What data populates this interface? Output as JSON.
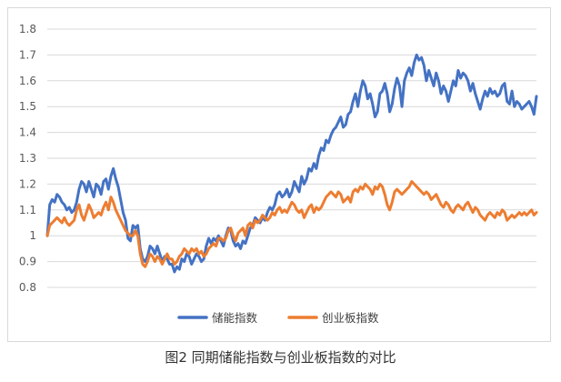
{
  "caption": "图2 同期储能指数与创业板指数的对比",
  "colors": {
    "storage": "#4472C4",
    "chinext": "#ED7D31",
    "grid": "#d9d9d9",
    "axis_text": "#595959"
  },
  "chart_data": {
    "type": "line",
    "title": "",
    "xlabel": "",
    "ylabel": "",
    "ylim": [
      0.8,
      1.8
    ],
    "yticks": [
      "0.8",
      "0.9",
      "1",
      "1.1",
      "1.2",
      "1.3",
      "1.4",
      "1.5",
      "1.6",
      "1.7",
      "1.8"
    ],
    "grid": true,
    "legend_position": "bottom",
    "x": [
      0,
      1,
      2,
      3,
      4,
      5,
      6,
      7,
      8,
      9,
      10,
      11,
      12,
      13,
      14,
      15,
      16,
      17,
      18,
      19,
      20,
      21,
      22,
      23,
      24,
      25,
      26,
      27,
      28,
      29,
      30,
      31,
      32,
      33,
      34,
      35,
      36,
      37,
      38,
      39,
      40,
      41,
      42,
      43,
      44,
      45,
      46,
      47,
      48,
      49,
      50,
      51,
      52,
      53,
      54,
      55,
      56,
      57,
      58,
      59,
      60,
      61,
      62,
      63,
      64,
      65,
      66,
      67,
      68,
      69,
      70,
      71,
      72,
      73,
      74,
      75,
      76,
      77,
      78,
      79,
      80,
      81,
      82,
      83,
      84,
      85,
      86,
      87,
      88,
      89,
      90,
      91,
      92,
      93,
      94,
      95,
      96,
      97,
      98,
      99,
      100,
      101,
      102,
      103,
      104,
      105,
      106,
      107,
      108,
      109,
      110,
      111,
      112,
      113,
      114,
      115,
      116,
      117,
      118,
      119,
      120,
      121,
      122,
      123,
      124,
      125,
      126,
      127,
      128,
      129,
      130,
      131,
      132,
      133,
      134,
      135,
      136,
      137,
      138,
      139,
      140,
      141,
      142,
      143,
      144,
      145,
      146,
      147,
      148,
      149,
      150,
      151,
      152,
      153,
      154,
      155,
      156,
      157,
      158,
      159,
      160,
      161,
      162,
      163,
      164,
      165,
      166,
      167,
      168,
      169,
      170,
      171,
      172,
      173,
      174,
      175,
      176,
      177,
      178,
      179,
      180,
      181,
      182,
      183,
      184,
      185,
      186,
      187,
      188,
      189,
      190,
      191,
      192,
      193,
      194,
      195,
      196,
      197,
      198,
      199,
      200
    ],
    "series": [
      {
        "name": "储能指数",
        "color": "#4472C4",
        "values": [
          1.0,
          1.12,
          1.14,
          1.13,
          1.16,
          1.15,
          1.13,
          1.12,
          1.1,
          1.11,
          1.09,
          1.1,
          1.13,
          1.18,
          1.21,
          1.2,
          1.17,
          1.21,
          1.18,
          1.15,
          1.2,
          1.19,
          1.16,
          1.21,
          1.22,
          1.18,
          1.23,
          1.26,
          1.22,
          1.19,
          1.14,
          1.09,
          1.06,
          0.99,
          0.98,
          1.04,
          1.03,
          1.04,
          0.95,
          0.91,
          0.9,
          0.92,
          0.96,
          0.95,
          0.93,
          0.96,
          0.93,
          0.9,
          0.92,
          0.91,
          0.89,
          0.89,
          0.86,
          0.88,
          0.87,
          0.91,
          0.9,
          0.93,
          0.92,
          0.89,
          0.91,
          0.93,
          0.92,
          0.9,
          0.91,
          0.96,
          0.99,
          0.97,
          0.99,
          0.98,
          1.0,
          0.98,
          0.96,
          1.0,
          1.03,
          1.02,
          0.98,
          0.96,
          0.97,
          0.95,
          0.98,
          0.97,
          1.0,
          1.03,
          1.04,
          1.07,
          1.06,
          1.05,
          1.07,
          1.06,
          1.09,
          1.11,
          1.1,
          1.12,
          1.16,
          1.17,
          1.15,
          1.16,
          1.18,
          1.15,
          1.17,
          1.21,
          1.19,
          1.17,
          1.23,
          1.2,
          1.22,
          1.26,
          1.25,
          1.28,
          1.26,
          1.31,
          1.34,
          1.33,
          1.37,
          1.36,
          1.39,
          1.41,
          1.42,
          1.44,
          1.46,
          1.42,
          1.43,
          1.47,
          1.48,
          1.52,
          1.55,
          1.5,
          1.56,
          1.6,
          1.58,
          1.53,
          1.55,
          1.51,
          1.46,
          1.48,
          1.55,
          1.56,
          1.59,
          1.55,
          1.48,
          1.51,
          1.57,
          1.61,
          1.58,
          1.5,
          1.6,
          1.63,
          1.65,
          1.62,
          1.67,
          1.7,
          1.68,
          1.69,
          1.66,
          1.6,
          1.64,
          1.61,
          1.58,
          1.63,
          1.6,
          1.55,
          1.58,
          1.56,
          1.52,
          1.56,
          1.6,
          1.58,
          1.64,
          1.61,
          1.63,
          1.62,
          1.6,
          1.56,
          1.59,
          1.55,
          1.52,
          1.49,
          1.53,
          1.56,
          1.54,
          1.57,
          1.55,
          1.56,
          1.54,
          1.55,
          1.58,
          1.59,
          1.52,
          1.51,
          1.56,
          1.5,
          1.52,
          1.51,
          1.49,
          1.5,
          1.51,
          1.52,
          1.5,
          1.47,
          1.54
        ]
      },
      {
        "name": "创业板指数",
        "color": "#ED7D31",
        "values": [
          1.0,
          1.04,
          1.05,
          1.06,
          1.07,
          1.06,
          1.05,
          1.07,
          1.05,
          1.04,
          1.05,
          1.06,
          1.1,
          1.12,
          1.08,
          1.06,
          1.09,
          1.12,
          1.1,
          1.07,
          1.08,
          1.09,
          1.08,
          1.11,
          1.13,
          1.1,
          1.15,
          1.13,
          1.1,
          1.08,
          1.06,
          1.04,
          1.02,
          1.01,
          1.0,
          1.0,
          1.02,
          1.0,
          0.93,
          0.89,
          0.88,
          0.9,
          0.93,
          0.92,
          0.9,
          0.92,
          0.91,
          0.89,
          0.91,
          0.93,
          0.91,
          0.91,
          0.89,
          0.9,
          0.92,
          0.93,
          0.95,
          0.94,
          0.93,
          0.95,
          0.94,
          0.95,
          0.93,
          0.94,
          0.92,
          0.93,
          0.95,
          0.96,
          0.97,
          0.96,
          0.99,
          0.99,
          0.98,
          0.99,
          1.02,
          1.03,
          1.0,
          0.98,
          1.01,
          1.02,
          1.03,
          1.0,
          1.04,
          1.05,
          1.03,
          1.06,
          1.05,
          1.06,
          1.08,
          1.07,
          1.06,
          1.07,
          1.09,
          1.08,
          1.1,
          1.11,
          1.09,
          1.1,
          1.09,
          1.11,
          1.13,
          1.12,
          1.1,
          1.09,
          1.1,
          1.07,
          1.09,
          1.11,
          1.12,
          1.09,
          1.11,
          1.1,
          1.11,
          1.13,
          1.15,
          1.16,
          1.17,
          1.16,
          1.15,
          1.17,
          1.16,
          1.13,
          1.14,
          1.15,
          1.13,
          1.17,
          1.18,
          1.17,
          1.19,
          1.18,
          1.2,
          1.19,
          1.18,
          1.16,
          1.19,
          1.18,
          1.2,
          1.19,
          1.16,
          1.12,
          1.1,
          1.13,
          1.17,
          1.18,
          1.17,
          1.16,
          1.17,
          1.18,
          1.19,
          1.21,
          1.2,
          1.19,
          1.18,
          1.17,
          1.16,
          1.17,
          1.16,
          1.14,
          1.15,
          1.16,
          1.14,
          1.12,
          1.11,
          1.13,
          1.12,
          1.1,
          1.09,
          1.11,
          1.12,
          1.11,
          1.1,
          1.12,
          1.13,
          1.11,
          1.09,
          1.11,
          1.1,
          1.08,
          1.07,
          1.06,
          1.08,
          1.09,
          1.08,
          1.07,
          1.09,
          1.08,
          1.1,
          1.09,
          1.06,
          1.07,
          1.08,
          1.07,
          1.08,
          1.09,
          1.08,
          1.09,
          1.08,
          1.09,
          1.1,
          1.08,
          1.09
        ]
      }
    ]
  }
}
